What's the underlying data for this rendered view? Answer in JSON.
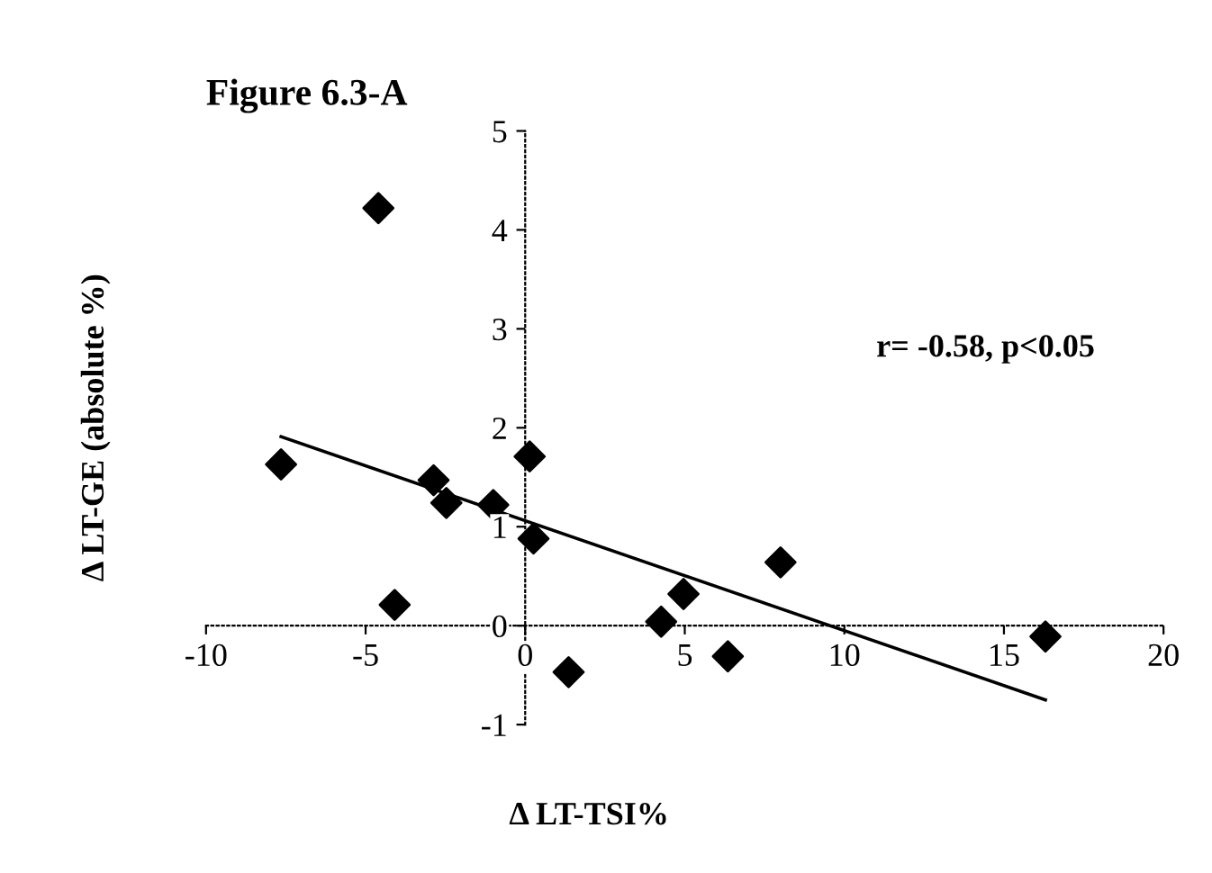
{
  "chart_data": {
    "type": "scatter",
    "title": "Figure 6.3-A",
    "xlabel": "Δ LT-TSI%",
    "ylabel": "Δ LT-GE (absolute %)",
    "annotations": [
      "r= -0.58, p<0.05"
    ],
    "series": [
      {
        "marker": "diamond",
        "color": "#000000",
        "x": [
          -7.65,
          -4.6,
          -2.87,
          -2.47,
          -1.0,
          0.14,
          0.26,
          -4.09,
          1.36,
          4.26,
          4.96,
          6.35,
          8.0,
          16.3
        ],
        "values": [
          1.63,
          4.22,
          1.47,
          1.24,
          1.22,
          1.71,
          0.88,
          0.21,
          -0.47,
          0.04,
          0.32,
          -0.31,
          0.64,
          -0.11
        ]
      },
      {
        "type": "line",
        "color": "#000000",
        "x": [
          -7.65,
          16.3
        ],
        "values": [
          1.91,
          -0.75
        ]
      }
    ],
    "xlim": [
      -10,
      20
    ],
    "ylim": [
      -1,
      5
    ],
    "xticks": [
      -10,
      -5,
      0,
      5,
      10,
      15,
      20
    ],
    "yticks": [
      -1,
      0,
      1,
      2,
      3,
      4,
      5
    ]
  }
}
